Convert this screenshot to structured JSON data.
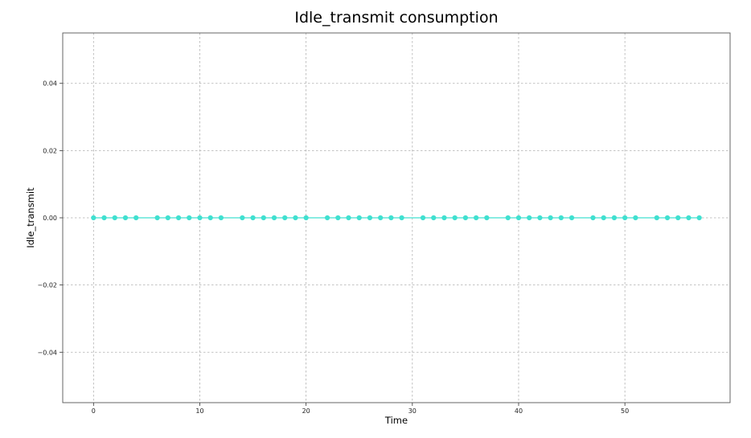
{
  "chart_data": {
    "type": "line",
    "title": "Idle_transmit consumption",
    "xlabel": "Time",
    "ylabel": "Idle_transmit",
    "xlim": [
      -2.9,
      59.9
    ],
    "ylim": [
      -0.055,
      0.055
    ],
    "xticks": [
      0,
      10,
      20,
      30,
      40,
      50
    ],
    "xtick_labels": [
      "0",
      "10",
      "20",
      "30",
      "40",
      "50"
    ],
    "yticks": [
      0.04,
      0.02,
      0.0,
      -0.02,
      -0.04
    ],
    "ytick_labels": [
      "0.04",
      "0.02",
      "0.00",
      "−0.02",
      "−0.04"
    ],
    "grid": true,
    "series": [
      {
        "color": "#40e0d0",
        "marker": "circle",
        "points": [
          [
            0,
            0
          ],
          [
            1,
            0
          ],
          [
            2,
            0
          ],
          [
            3,
            0
          ],
          [
            4,
            0
          ],
          [
            6,
            0
          ],
          [
            7,
            0
          ],
          [
            8,
            0
          ],
          [
            9,
            0
          ],
          [
            10,
            0
          ],
          [
            11,
            0
          ],
          [
            12,
            0
          ],
          [
            14,
            0
          ],
          [
            15,
            0
          ],
          [
            16,
            0
          ],
          [
            17,
            0
          ],
          [
            18,
            0
          ],
          [
            19,
            0
          ],
          [
            20,
            0
          ],
          [
            22,
            0
          ],
          [
            23,
            0
          ],
          [
            24,
            0
          ],
          [
            25,
            0
          ],
          [
            26,
            0
          ],
          [
            27,
            0
          ],
          [
            28,
            0
          ],
          [
            29,
            0
          ],
          [
            31,
            0
          ],
          [
            32,
            0
          ],
          [
            33,
            0
          ],
          [
            34,
            0
          ],
          [
            35,
            0
          ],
          [
            36,
            0
          ],
          [
            37,
            0
          ],
          [
            39,
            0
          ],
          [
            40,
            0
          ],
          [
            41,
            0
          ],
          [
            42,
            0
          ],
          [
            43,
            0
          ],
          [
            44,
            0
          ],
          [
            45,
            0
          ],
          [
            47,
            0
          ],
          [
            48,
            0
          ],
          [
            49,
            0
          ],
          [
            50,
            0
          ],
          [
            51,
            0
          ],
          [
            53,
            0
          ],
          [
            54,
            0
          ],
          [
            55,
            0
          ],
          [
            56,
            0
          ],
          [
            57,
            0
          ]
        ]
      }
    ]
  }
}
